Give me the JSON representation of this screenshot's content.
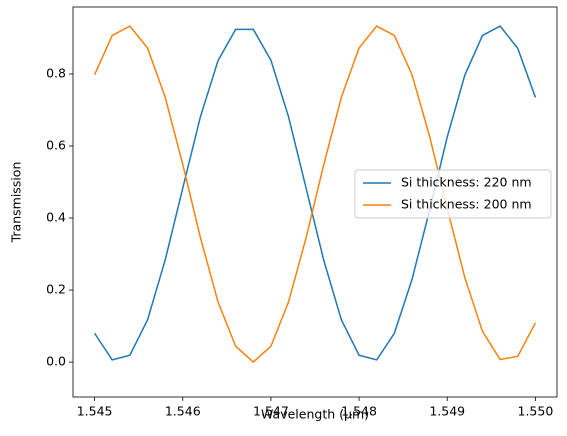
{
  "chart_data": {
    "type": "line",
    "x_label": "Wavelength (µm)",
    "y_label": "Transmission",
    "x": [
      1.545,
      1.5452,
      1.5454,
      1.5456,
      1.5458,
      1.546,
      1.5462,
      1.5464,
      1.5466,
      1.5468,
      1.547,
      1.5472,
      1.5474,
      1.5476,
      1.5478,
      1.548,
      1.5482,
      1.5484,
      1.5486,
      1.5488,
      1.549,
      1.5492,
      1.5494,
      1.5496,
      1.5498,
      1.55
    ],
    "series": [
      {
        "name": "Si thickness: 220 nm",
        "color": "#1f77b4",
        "values": [
          0.08,
          0.006,
          0.019,
          0.117,
          0.283,
          0.483,
          0.681,
          0.837,
          0.924,
          0.924,
          0.838,
          0.681,
          0.482,
          0.282,
          0.117,
          0.019,
          0.006,
          0.08,
          0.229,
          0.422,
          0.625,
          0.797,
          0.907,
          0.933,
          0.871,
          0.735
        ]
      },
      {
        "name": "Si thickness: 200 nm",
        "color": "#ff7f0e",
        "values": [
          0.798,
          0.907,
          0.933,
          0.872,
          0.736,
          0.549,
          0.346,
          0.167,
          0.044,
          0,
          0.044,
          0.167,
          0.346,
          0.549,
          0.736,
          0.872,
          0.933,
          0.907,
          0.798,
          0.627,
          0.427,
          0.234,
          0.085,
          0.007,
          0.016,
          0.109
        ]
      }
    ],
    "xlim": [
      1.544755,
      1.550245
    ],
    "xticks": [
      1.545,
      1.546,
      1.547,
      1.548,
      1.549,
      {
        "value": 1.55,
        "label": "1.550"
      }
    ],
    "ylim": [
      -0.097,
      0.986
    ],
    "yticks": [
      {
        "value": 0,
        "label": "0.0"
      },
      0.2,
      0.4,
      0.6,
      0.8
    ],
    "legend": "center right"
  }
}
